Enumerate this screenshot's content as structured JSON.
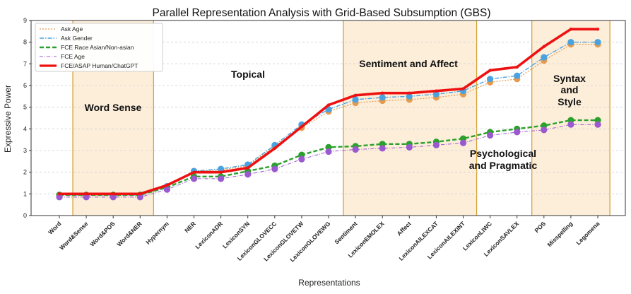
{
  "chart_data": {
    "type": "line",
    "title": "Parallel Representation Analysis with Grid-Based Subsumption (GBS)",
    "xlabel": "Representations",
    "ylabel": "Expressive Power",
    "ylim": [
      0,
      9
    ],
    "yticks": [
      "0",
      "1",
      "2",
      "3",
      "4",
      "5",
      "6",
      "7",
      "8",
      "9"
    ],
    "grid": true,
    "legend_position": "top-left",
    "categories": [
      "Word",
      "Word&Sense",
      "Word&POS",
      "Word&NER",
      "Hypernym",
      "NER",
      "LexiconADR",
      "LexiconSYN",
      "LexiconGLOVECC",
      "LexiconGLOVETW",
      "LexiconGLOVEWG",
      "Sentiment",
      "LexiconEMOLEX",
      "Affect",
      "LexiconAILEXCAT",
      "LexiconAILEXINT",
      "LexiconLIWC",
      "LexiconSAVLEX",
      "POS",
      "Misspelling",
      "Legomena"
    ],
    "series": [
      {
        "name": "Ask Age",
        "color": "#e69a4e",
        "style": "dotted",
        "marker": "circle",
        "values": [
          0.95,
          0.95,
          0.95,
          0.95,
          1.35,
          2.05,
          2.1,
          2.3,
          3.2,
          4.05,
          4.8,
          5.2,
          5.3,
          5.35,
          5.45,
          5.6,
          6.15,
          6.3,
          7.15,
          7.9,
          7.9
        ]
      },
      {
        "name": "Ask Gender",
        "color": "#4aa3e0",
        "style": "dashdot",
        "marker": "circle",
        "values": [
          0.95,
          0.95,
          0.95,
          0.95,
          1.35,
          2.05,
          2.15,
          2.35,
          3.25,
          4.2,
          4.9,
          5.35,
          5.45,
          5.5,
          5.6,
          5.75,
          6.3,
          6.45,
          7.3,
          8.0,
          8.0
        ]
      },
      {
        "name": "FCE Race Asian/Non-asian",
        "color": "#2ca02c",
        "style": "dashed",
        "marker": "circle",
        "values": [
          0.95,
          0.95,
          0.95,
          0.95,
          1.3,
          1.8,
          1.8,
          2.05,
          2.3,
          2.8,
          3.15,
          3.2,
          3.3,
          3.3,
          3.4,
          3.55,
          3.85,
          4.0,
          4.15,
          4.4,
          4.4
        ]
      },
      {
        "name": "FCE Age",
        "color": "#9b59d0",
        "style": "dashdot-thin",
        "marker": "circle",
        "values": [
          0.85,
          0.85,
          0.85,
          0.85,
          1.2,
          1.7,
          1.7,
          1.9,
          2.15,
          2.6,
          2.95,
          3.05,
          3.1,
          3.15,
          3.25,
          3.35,
          3.7,
          3.85,
          3.95,
          4.2,
          4.2
        ]
      },
      {
        "name": "FCE/ASAP Human/ChatGPT",
        "color": "#ee1111",
        "style": "solid-thick",
        "marker": "none",
        "values": [
          1.0,
          1.0,
          1.0,
          1.0,
          1.4,
          2.0,
          2.0,
          2.2,
          3.1,
          4.1,
          5.1,
          5.55,
          5.65,
          5.65,
          5.75,
          5.85,
          6.7,
          6.85,
          7.8,
          8.6,
          8.6
        ]
      }
    ],
    "regions": [
      {
        "label": "Word Sense",
        "start": "Word&Sense",
        "end": "Word&NER",
        "shaded": true
      },
      {
        "label": "Topical",
        "start": "Word&NER",
        "end": "LexiconGLOVEWG",
        "shaded": false
      },
      {
        "label": "Sentiment and Affect",
        "start": "Sentiment",
        "end": "LexiconAILEXINT",
        "shaded": true
      },
      {
        "label": "Psychological and Pragmatic",
        "start": "LexiconAILEXINT",
        "end": "LexiconSAVLEX",
        "shaded": false
      },
      {
        "label": "Syntax and Style",
        "start": "POS",
        "end": "Legomena",
        "shaded": true
      }
    ]
  }
}
